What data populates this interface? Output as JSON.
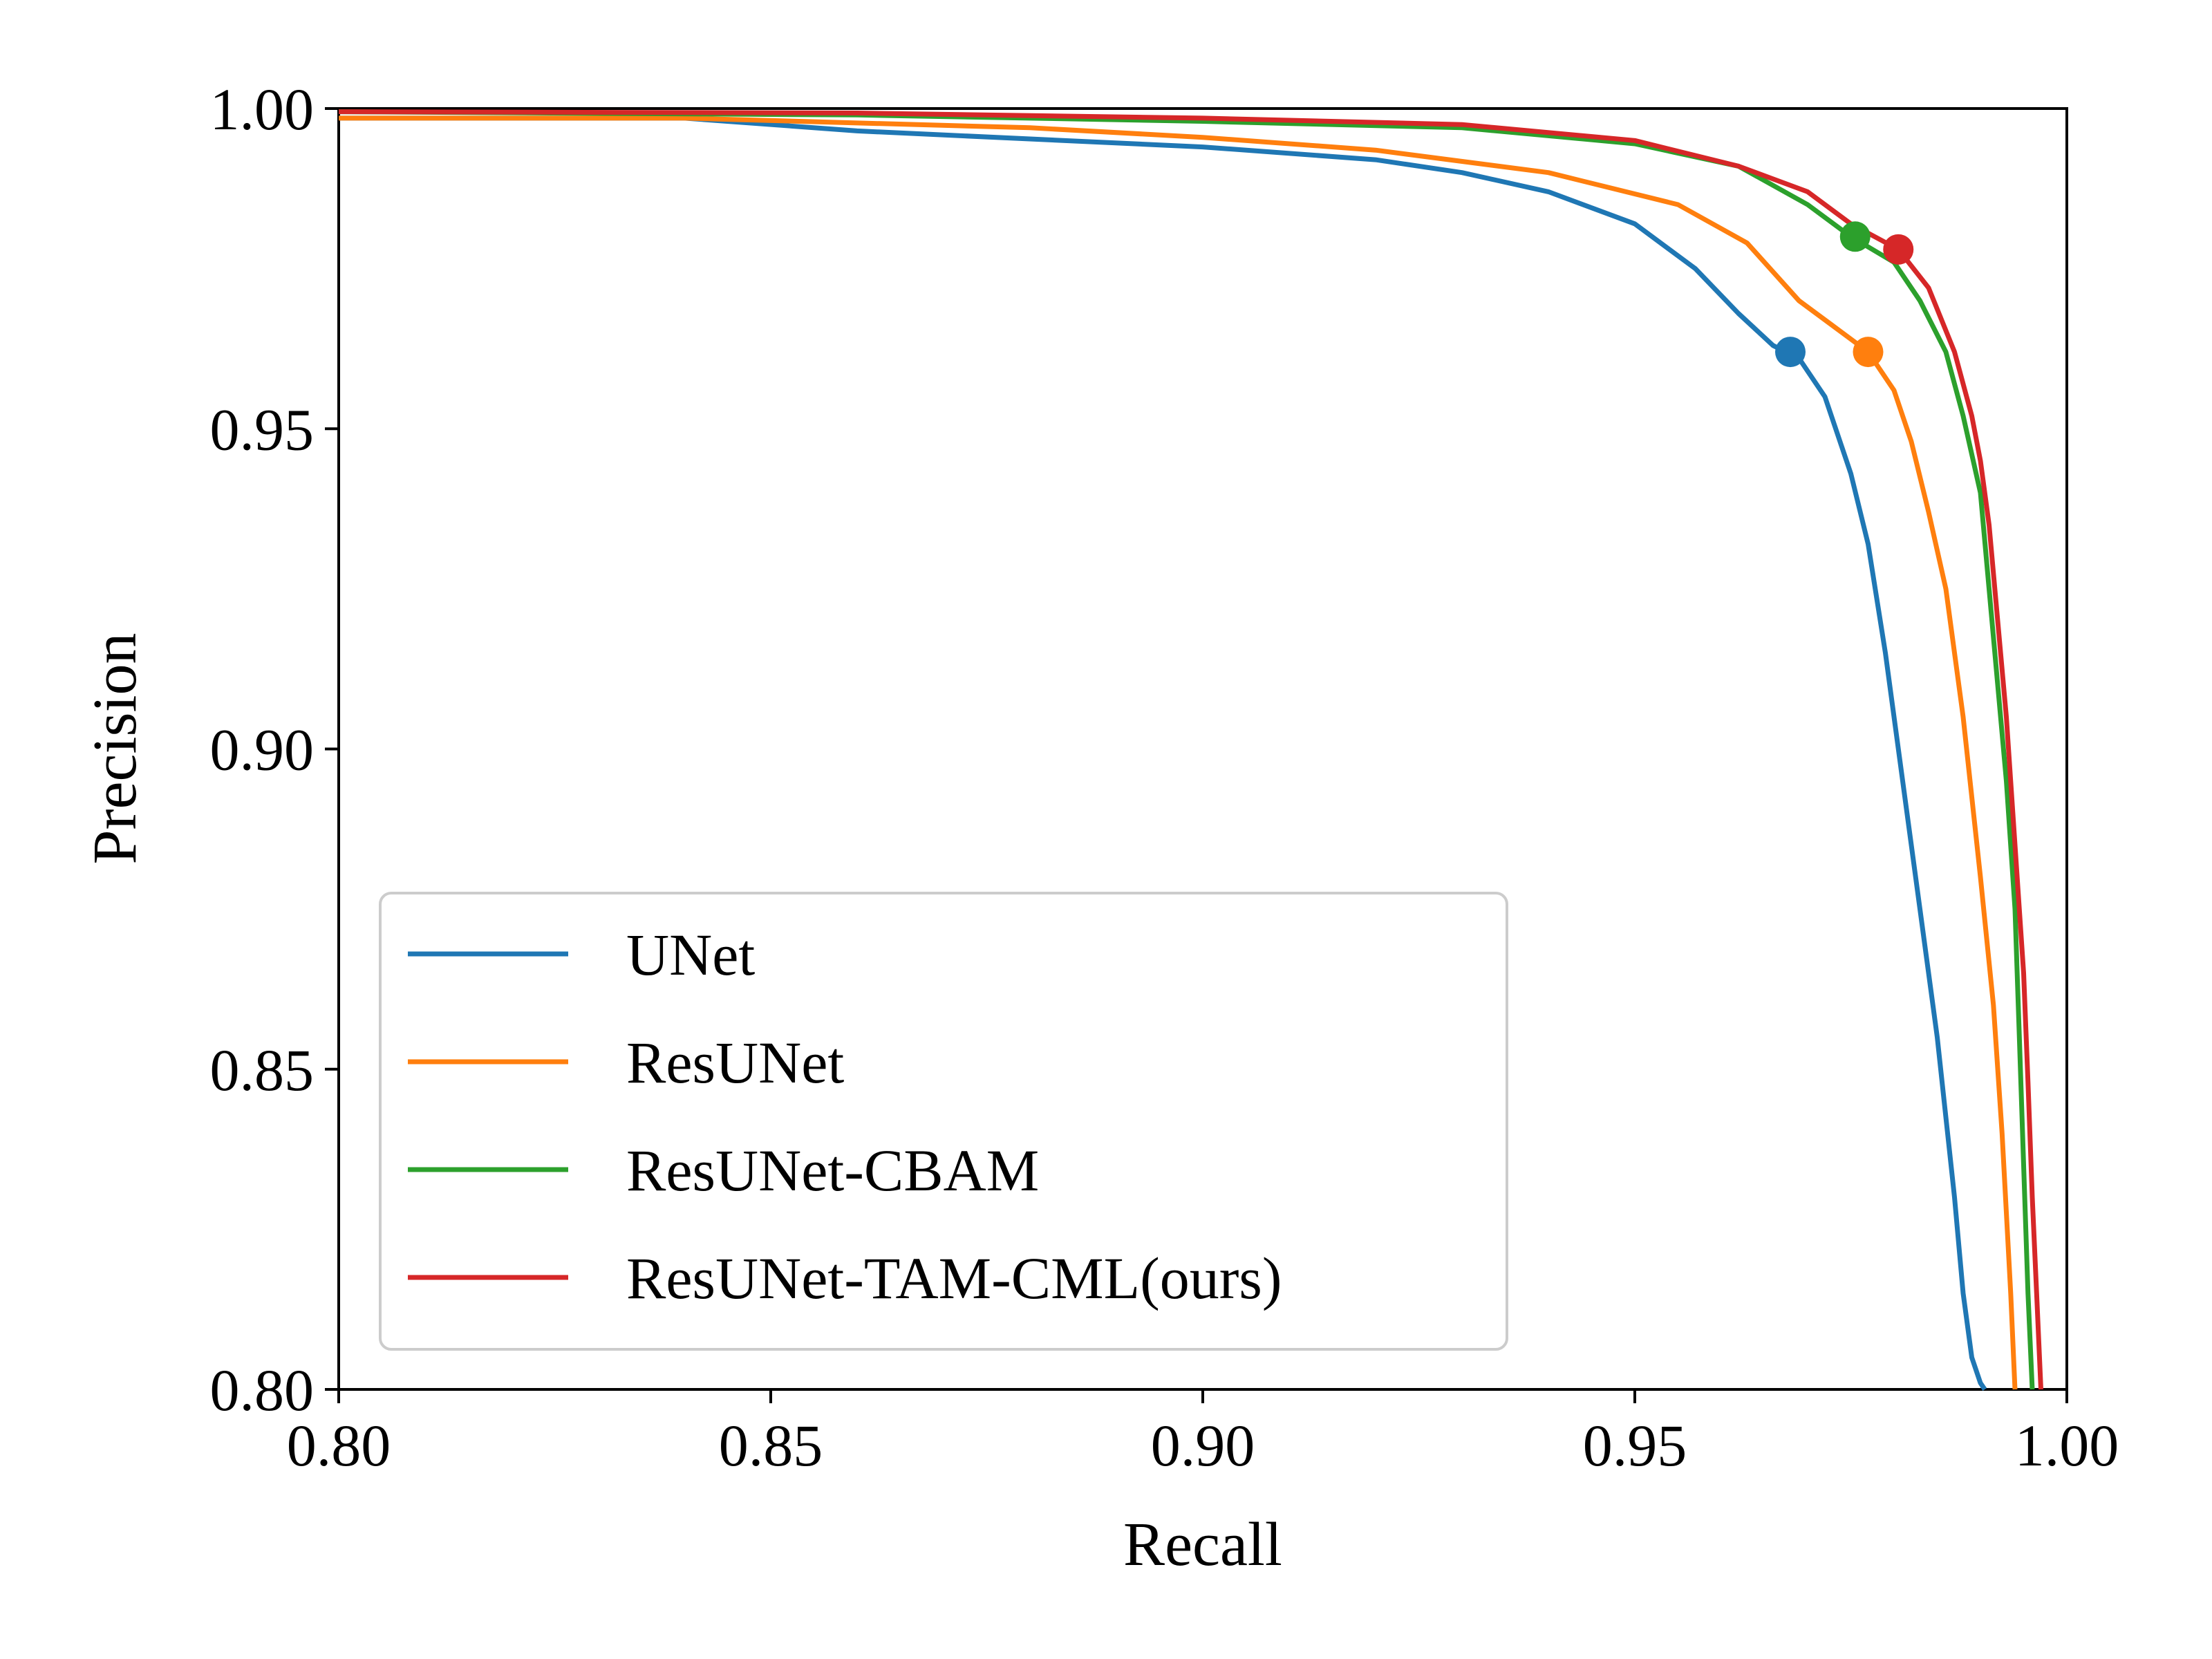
{
  "chart_data": {
    "type": "line",
    "title": "",
    "xlabel": "Recall",
    "ylabel": "Precision",
    "xlim": [
      0.8,
      1.0
    ],
    "ylim": [
      0.8,
      1.0
    ],
    "xticks": [
      "0.80",
      "0.85",
      "0.90",
      "0.95",
      "1.00"
    ],
    "yticks": [
      "0.80",
      "0.85",
      "0.90",
      "0.95",
      "1.00"
    ],
    "xtick_values": [
      0.8,
      0.85,
      0.9,
      0.95,
      1.0
    ],
    "ytick_values": [
      0.8,
      0.85,
      0.9,
      0.95,
      1.0
    ],
    "grid": false,
    "legend_position": "lower-left",
    "series": [
      {
        "name": "UNet",
        "color": "#1f77b4",
        "x": [
          0.8,
          0.84,
          0.86,
          0.9,
          0.92,
          0.93,
          0.94,
          0.95,
          0.957,
          0.962,
          0.966,
          0.969,
          0.972,
          0.975,
          0.977,
          0.979,
          0.981,
          0.983,
          0.985,
          0.987,
          0.988,
          0.989,
          0.99,
          0.9905
        ],
        "y": [
          0.9985,
          0.9985,
          0.9965,
          0.994,
          0.992,
          0.99,
          0.987,
          0.982,
          0.975,
          0.968,
          0.963,
          0.961,
          0.955,
          0.943,
          0.932,
          0.915,
          0.895,
          0.875,
          0.855,
          0.83,
          0.815,
          0.805,
          0.801,
          0.8
        ],
        "marker": {
          "x": 0.968,
          "y": 0.962
        }
      },
      {
        "name": "ResUNet",
        "color": "#ff7f0e",
        "x": [
          0.8,
          0.84,
          0.88,
          0.9,
          0.92,
          0.94,
          0.955,
          0.963,
          0.969,
          0.973,
          0.977,
          0.98,
          0.982,
          0.984,
          0.986,
          0.988,
          0.99,
          0.9915,
          0.9925,
          0.9935,
          0.994
        ],
        "y": [
          0.9985,
          0.9985,
          0.997,
          0.9955,
          0.9935,
          0.99,
          0.985,
          0.979,
          0.97,
          0.966,
          0.962,
          0.956,
          0.948,
          0.937,
          0.925,
          0.905,
          0.88,
          0.86,
          0.84,
          0.815,
          0.8
        ],
        "marker": {
          "x": 0.977,
          "y": 0.962
        }
      },
      {
        "name": "ResUNet-CBAM",
        "color": "#2ca02c",
        "x": [
          0.8,
          0.86,
          0.9,
          0.93,
          0.95,
          0.962,
          0.97,
          0.975,
          0.98,
          0.983,
          0.986,
          0.988,
          0.99,
          0.991,
          0.992,
          0.993,
          0.994,
          0.9945,
          0.995,
          0.9955,
          0.996
        ],
        "y": [
          0.9995,
          0.999,
          0.998,
          0.997,
          0.9945,
          0.991,
          0.985,
          0.98,
          0.976,
          0.97,
          0.962,
          0.952,
          0.94,
          0.925,
          0.91,
          0.895,
          0.875,
          0.855,
          0.835,
          0.815,
          0.8
        ],
        "marker": {
          "x": 0.9755,
          "y": 0.98
        }
      },
      {
        "name": "ResUNet-TAM-CML(ours)",
        "color": "#d62728",
        "x": [
          0.8,
          0.86,
          0.9,
          0.93,
          0.95,
          0.962,
          0.97,
          0.975,
          0.9805,
          0.984,
          0.987,
          0.989,
          0.99,
          0.991,
          0.992,
          0.993,
          0.994,
          0.995,
          0.9955,
          0.996,
          0.9965,
          0.997
        ],
        "y": [
          0.9995,
          0.9993,
          0.9985,
          0.9975,
          0.995,
          0.991,
          0.987,
          0.982,
          0.978,
          0.972,
          0.962,
          0.952,
          0.945,
          0.935,
          0.92,
          0.905,
          0.885,
          0.865,
          0.848,
          0.83,
          0.815,
          0.8
        ],
        "marker": {
          "x": 0.9805,
          "y": 0.978
        }
      }
    ]
  }
}
